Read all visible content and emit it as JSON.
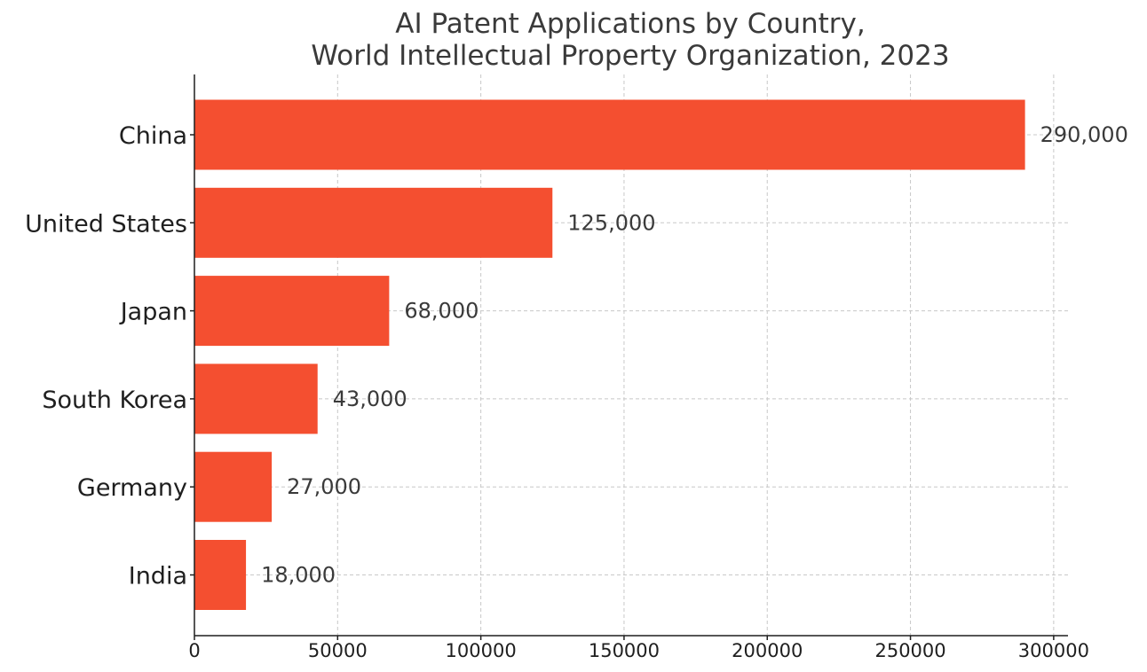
{
  "chart_data": {
    "type": "bar",
    "orientation": "horizontal",
    "title": [
      "AI Patent Applications by Country,",
      "World Intellectual Property Organization, 2023"
    ],
    "categories": [
      "China",
      "United States",
      "Japan",
      "South Korea",
      "Germany",
      "India"
    ],
    "values": [
      290000,
      125000,
      68000,
      43000,
      27000,
      18000
    ],
    "value_labels": [
      "290,000",
      "125,000",
      "68,000",
      "43,000",
      "27,000",
      "18,000"
    ],
    "xlim": [
      0,
      305000
    ],
    "x_ticks": [
      0,
      50000,
      100000,
      150000,
      200000,
      250000,
      300000
    ],
    "x_tick_labels": [
      "0",
      "50000",
      "100000",
      "150000",
      "200000",
      "250000",
      "300000"
    ],
    "xlabel": "",
    "ylabel": "",
    "grid": true,
    "bar_color": "#f44f30"
  }
}
